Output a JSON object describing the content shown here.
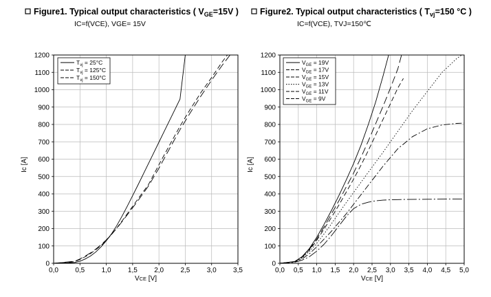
{
  "chart_data": [
    {
      "type": "line",
      "title_prefix": "Figure1. Typical output characteristics ( V",
      "title_sub": "GE",
      "title_suffix": "=15V )",
      "subtitle": "IC=f(VCE), VGE= 15V",
      "xlabel_main": "V",
      "xlabel_sub": "CE",
      "xlabel_unit": " [V]",
      "ylabel": "Ic [A]",
      "xlim": [
        0,
        3.5
      ],
      "ylim": [
        0,
        1200
      ],
      "grid": true,
      "legend_position": "top-left",
      "x_ticks": [
        "0,0",
        "0,5",
        "1,0",
        "1,5",
        "2,0",
        "2,5",
        "3,0",
        "3,5"
      ],
      "y_ticks": [
        "0",
        "100",
        "200",
        "300",
        "400",
        "500",
        "600",
        "700",
        "800",
        "900",
        "1000",
        "1100",
        "1200"
      ],
      "series": [
        {
          "legend_main": "T",
          "legend_sub": "vj",
          "legend_rest": " = 25°C",
          "dash": "solid",
          "x": [
            0,
            0.4,
            0.5,
            0.6,
            0.7,
            0.8,
            0.9,
            1.0,
            1.1,
            1.2,
            1.3,
            1.4,
            1.5,
            1.6,
            1.7,
            1.8,
            1.9,
            2.0,
            2.1,
            2.2,
            2.3,
            2.4,
            2.5
          ],
          "y": [
            0,
            5,
            12,
            25,
            42,
            65,
            95,
            130,
            170,
            218,
            272,
            330,
            390,
            450,
            512,
            574,
            636,
            698,
            760,
            822,
            884,
            946,
            1200
          ]
        },
        {
          "legend_main": "T",
          "legend_sub": "vj",
          "legend_rest": " = 125°C",
          "dash": "dash",
          "x": [
            0,
            0.4,
            0.5,
            0.6,
            0.7,
            0.8,
            0.9,
            1.0,
            1.1,
            1.2,
            1.3,
            1.4,
            1.5,
            1.6,
            1.8,
            2.0,
            2.2,
            2.4,
            2.6,
            2.8,
            3.0,
            3.2,
            3.3
          ],
          "y": [
            0,
            10,
            22,
            38,
            56,
            78,
            103,
            132,
            166,
            204,
            244,
            286,
            328,
            370,
            453,
            568,
            680,
            790,
            890,
            985,
            1070,
            1160,
            1200
          ]
        },
        {
          "legend_main": "T",
          "legend_sub": "vj",
          "legend_rest": " = 150°C",
          "dash": "longdash",
          "x": [
            0,
            0.4,
            0.5,
            0.6,
            0.7,
            0.8,
            0.9,
            1.0,
            1.1,
            1.2,
            1.3,
            1.4,
            1.5,
            1.6,
            1.8,
            2.0,
            2.2,
            2.4,
            2.6,
            2.8,
            3.0,
            3.2,
            3.35
          ],
          "y": [
            0,
            12,
            25,
            42,
            60,
            82,
            107,
            135,
            167,
            202,
            240,
            280,
            320,
            360,
            445,
            548,
            660,
            770,
            870,
            965,
            1055,
            1140,
            1200
          ]
        }
      ]
    },
    {
      "type": "line",
      "title_prefix": "Figure2. Typical output characteristics ( T",
      "title_sub": "vj",
      "title_suffix": "=150 °C )",
      "subtitle": "IC=f(VCE), TVJ=150℃",
      "xlabel_main": "V",
      "xlabel_sub": "CE",
      "xlabel_unit": " [V]",
      "ylabel": "Ic [A]",
      "xlim": [
        0,
        5.0
      ],
      "ylim": [
        0,
        1200
      ],
      "grid": true,
      "legend_position": "top-left",
      "x_ticks": [
        "0,0",
        "0,5",
        "1,0",
        "1,5",
        "2,0",
        "2,5",
        "3,0",
        "3,5",
        "4,0",
        "4,5",
        "5,0"
      ],
      "y_ticks": [
        "0",
        "100",
        "200",
        "300",
        "400",
        "500",
        "600",
        "700",
        "800",
        "900",
        "1000",
        "1100",
        "1200"
      ],
      "series": [
        {
          "legend_main": "V",
          "legend_sub": "GE",
          "legend_rest": " =  19V",
          "dash": "solid",
          "x": [
            0,
            0.4,
            0.6,
            0.8,
            1.0,
            1.2,
            1.4,
            1.6,
            1.8,
            2.0,
            2.2,
            2.4,
            2.6,
            2.8,
            2.95
          ],
          "y": [
            0,
            10,
            38,
            85,
            150,
            225,
            305,
            390,
            480,
            575,
            680,
            800,
            930,
            1080,
            1200
          ]
        },
        {
          "legend_main": "V",
          "legend_sub": "GE",
          "legend_rest": " =  17V",
          "dash": "longdash",
          "x": [
            0,
            0.4,
            0.6,
            0.8,
            1.0,
            1.2,
            1.4,
            1.6,
            1.8,
            2.0,
            2.2,
            2.4,
            2.6,
            2.8,
            3.0,
            3.2,
            3.3
          ],
          "y": [
            0,
            10,
            36,
            80,
            140,
            210,
            285,
            360,
            440,
            520,
            610,
            705,
            805,
            905,
            1010,
            1120,
            1200
          ]
        },
        {
          "legend_main": "V",
          "legend_sub": "GE",
          "legend_rest": " =  15V",
          "dash": "dash",
          "x": [
            0,
            0.4,
            0.6,
            0.8,
            1.0,
            1.2,
            1.4,
            1.6,
            1.8,
            2.0,
            2.2,
            2.4,
            2.6,
            2.8,
            3.0,
            3.2,
            3.35
          ],
          "y": [
            0,
            10,
            34,
            76,
            132,
            198,
            265,
            335,
            410,
            485,
            565,
            650,
            740,
            830,
            920,
            1010,
            1065
          ]
        },
        {
          "legend_main": "V",
          "legend_sub": "GE",
          "legend_rest": " =  13V",
          "dash": "dot",
          "x": [
            0,
            0.4,
            0.6,
            0.8,
            1.0,
            1.2,
            1.4,
            1.6,
            1.8,
            2.0,
            2.4,
            2.8,
            3.2,
            3.6,
            4.0,
            4.4,
            4.8,
            5.0
          ],
          "y": [
            0,
            9,
            30,
            68,
            115,
            170,
            228,
            290,
            350,
            408,
            525,
            640,
            760,
            880,
            990,
            1100,
            1180,
            1210
          ]
        },
        {
          "legend_main": "V",
          "legend_sub": "GE",
          "legend_rest": " =  11V",
          "dash": "dashdot",
          "x": [
            0,
            0.4,
            0.6,
            0.8,
            1.0,
            1.2,
            1.4,
            1.6,
            1.8,
            2.0,
            2.4,
            2.8,
            3.2,
            3.6,
            4.0,
            4.4,
            4.8,
            5.0
          ],
          "y": [
            0,
            8,
            25,
            55,
            95,
            140,
            185,
            235,
            285,
            340,
            450,
            560,
            660,
            730,
            775,
            797,
            806,
            808
          ]
        },
        {
          "legend_main": "V",
          "legend_sub": "GE",
          "legend_rest": " =   9V",
          "dash": "dashdot2",
          "x": [
            0,
            0.4,
            0.6,
            0.8,
            1.0,
            1.2,
            1.4,
            1.6,
            1.8,
            2.0,
            2.2,
            2.4,
            2.6,
            2.8,
            3.0,
            3.4,
            4.0,
            4.5,
            5.0
          ],
          "y": [
            0,
            6,
            18,
            38,
            70,
            110,
            160,
            215,
            270,
            315,
            340,
            352,
            360,
            364,
            366,
            368,
            369,
            370,
            370
          ]
        }
      ]
    }
  ]
}
